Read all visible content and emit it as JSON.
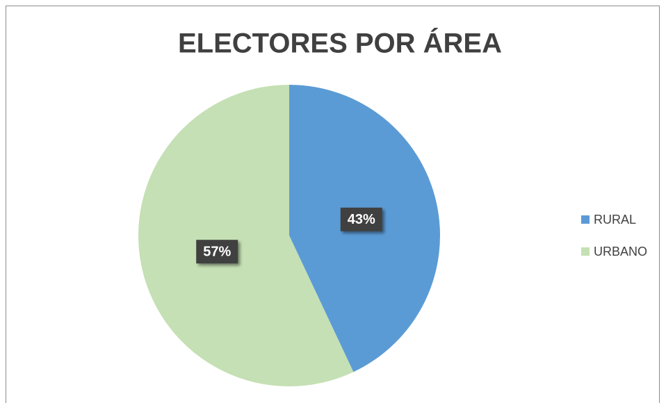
{
  "chart_data": {
    "type": "pie",
    "title": "ELECTORES POR ÁREA",
    "categories": [
      "RURAL",
      "URBANO"
    ],
    "values": [
      43,
      57
    ],
    "value_labels": [
      "43%",
      "57%"
    ],
    "colors": [
      "#5b9bd5",
      "#c5e0b4"
    ],
    "legend": "right"
  }
}
